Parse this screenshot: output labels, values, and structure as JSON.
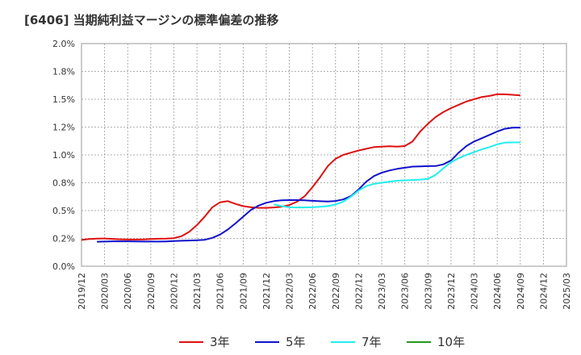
{
  "title": "[6406]  当期純利益マージンの標準偏差の推移",
  "chart_data": {
    "type": "line",
    "title": "[6406]  当期純利益マージンの標準偏差の推移",
    "xlabel": "",
    "ylabel": "",
    "ylim": [
      0.0,
      2.0
    ],
    "x_ticks": [
      "2019/12",
      "2020/03",
      "2020/06",
      "2020/09",
      "2020/12",
      "2021/03",
      "2021/06",
      "2021/09",
      "2021/12",
      "2022/03",
      "2022/06",
      "2022/09",
      "2022/12",
      "2023/03",
      "2023/06",
      "2023/09",
      "2023/12",
      "2024/03",
      "2024/06",
      "2024/09",
      "2024/12",
      "2025/03"
    ],
    "y_ticks": [
      "0.0%",
      "0.2%",
      "0.5%",
      "0.8%",
      "1.0%",
      "1.2%",
      "1.5%",
      "1.8%",
      "2.0%"
    ],
    "grid": true,
    "legend_position": "bottom",
    "series": [
      {
        "name": "3年",
        "color": "#dd1111",
        "values": [
          0.236,
          0.244,
          0.248,
          0.249,
          0.246,
          0.242,
          0.24,
          0.24,
          0.241,
          0.244,
          0.247,
          0.248,
          0.252,
          0.27,
          0.31,
          0.37,
          0.445,
          0.53,
          0.575,
          0.585,
          0.56,
          0.54,
          0.53,
          0.525,
          0.525,
          0.528,
          0.535,
          0.55,
          0.58,
          0.63,
          0.71,
          0.8,
          0.9,
          0.965,
          1.0,
          1.02,
          1.04,
          1.055,
          1.07,
          1.075,
          1.078,
          1.075,
          1.08,
          1.12,
          1.21,
          1.28,
          1.34,
          1.385,
          1.42,
          1.45,
          1.48,
          1.5,
          1.52,
          1.53,
          1.545,
          1.544,
          1.54,
          1.535
        ]
      },
      {
        "name": "5年",
        "color": "#1111cc",
        "values": [
          null,
          null,
          0.22,
          0.222,
          0.224,
          0.224,
          0.224,
          0.223,
          0.222,
          0.222,
          0.222,
          0.223,
          0.226,
          0.229,
          0.231,
          0.233,
          0.238,
          0.255,
          0.285,
          0.33,
          0.385,
          0.445,
          0.505,
          0.545,
          0.57,
          0.585,
          0.592,
          0.594,
          0.594,
          0.592,
          0.588,
          0.584,
          0.582,
          0.586,
          0.6,
          0.63,
          0.69,
          0.76,
          0.81,
          0.84,
          0.86,
          0.875,
          0.885,
          0.895,
          0.897,
          0.899,
          0.9,
          0.915,
          0.95,
          1.02,
          1.08,
          1.12,
          1.15,
          1.18,
          1.21,
          1.235,
          1.244,
          1.246
        ]
      },
      {
        "name": "7年",
        "color": "#22eeee",
        "values": [
          null,
          null,
          null,
          null,
          null,
          null,
          null,
          null,
          null,
          null,
          null,
          null,
          null,
          null,
          null,
          null,
          null,
          null,
          null,
          null,
          null,
          null,
          null,
          null,
          null,
          0.555,
          0.54,
          0.53,
          0.528,
          0.528,
          0.53,
          0.534,
          0.54,
          0.555,
          0.58,
          0.625,
          0.68,
          0.72,
          0.74,
          0.75,
          0.76,
          0.768,
          0.772,
          0.775,
          0.778,
          0.785,
          0.82,
          0.88,
          0.935,
          0.97,
          1.0,
          1.025,
          1.05,
          1.07,
          1.095,
          1.11,
          1.112,
          1.112
        ]
      },
      {
        "name": "10年",
        "color": "#229922",
        "values": []
      }
    ]
  }
}
